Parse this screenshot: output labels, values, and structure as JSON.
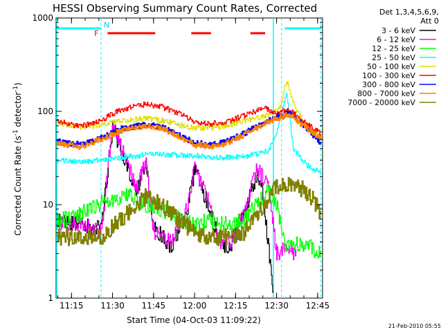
{
  "chart_data": {
    "type": "line",
    "title": "HESSI Observing Summary Count Rates, Corrected",
    "xlabel": "Start Time (04-Oct-03 11:09:22)",
    "ylabel_main": "Corrected Count Rate (s",
    "ylabel_sup1": "-1",
    "ylabel_mid": " detector",
    "ylabel_sup2": "-1",
    "ylabel_end": ")",
    "y_scale": "log",
    "ylim": [
      1,
      1000
    ],
    "xlim": [
      11.156,
      12.78
    ],
    "y_ticks": [
      {
        "value": 1,
        "label": "1"
      },
      {
        "value": 10,
        "label": "10"
      },
      {
        "value": 100,
        "label": "100"
      },
      {
        "value": 1000,
        "label": "1000"
      }
    ],
    "x_ticks": [
      {
        "value": 11.25,
        "label": "11:15"
      },
      {
        "value": 11.5,
        "label": "11:30"
      },
      {
        "value": 11.75,
        "label": "11:45"
      },
      {
        "value": 12.0,
        "label": "12:00"
      },
      {
        "value": 12.25,
        "label": "12:15"
      },
      {
        "value": 12.5,
        "label": "12:30"
      },
      {
        "value": 12.75,
        "label": "12:45"
      }
    ],
    "legend_header_line1": "Det 1,3,4,5,6,9,",
    "legend_header_line2": "Att 0",
    "legend_placement": "right",
    "markers": {
      "F_label": "F",
      "N_label": "N",
      "dashed_lines": [
        11.43,
        12.53,
        12.77
      ],
      "solid_lines": [
        11.16,
        12.48
      ]
    },
    "bars": {
      "cyan": [
        [
          11.16,
          11.43
        ],
        [
          12.55,
          12.77
        ]
      ],
      "red": [
        [
          11.47,
          11.76
        ],
        [
          11.98,
          12.1
        ],
        [
          12.34,
          12.43
        ]
      ]
    },
    "series": [
      {
        "name": "3 - 6 keV",
        "color": "#000000",
        "points": [
          [
            11.16,
            6.5
          ],
          [
            11.3,
            6.0
          ],
          [
            11.43,
            5.5
          ],
          [
            11.5,
            70
          ],
          [
            11.6,
            22
          ],
          [
            11.65,
            14
          ],
          [
            11.7,
            28
          ],
          [
            11.75,
            6
          ],
          [
            11.85,
            3.5
          ],
          [
            11.95,
            8
          ],
          [
            12.0,
            24
          ],
          [
            12.08,
            10
          ],
          [
            12.15,
            4
          ],
          [
            12.22,
            3.5
          ],
          [
            12.3,
            8
          ],
          [
            12.38,
            22
          ],
          [
            12.42,
            12
          ],
          [
            12.48,
            1
          ]
        ]
      },
      {
        "name": "6 - 12 keV",
        "color": "#ff00ff",
        "points": [
          [
            11.16,
            6.5
          ],
          [
            11.3,
            6.5
          ],
          [
            11.43,
            5
          ],
          [
            11.5,
            75
          ],
          [
            11.6,
            25
          ],
          [
            11.65,
            15
          ],
          [
            11.7,
            30
          ],
          [
            11.75,
            5
          ],
          [
            11.85,
            4
          ],
          [
            11.95,
            9
          ],
          [
            12.0,
            25
          ],
          [
            12.08,
            11
          ],
          [
            12.15,
            4
          ],
          [
            12.22,
            4
          ],
          [
            12.3,
            9
          ],
          [
            12.38,
            25
          ],
          [
            12.45,
            15
          ],
          [
            12.5,
            3
          ],
          [
            12.55,
            3.5
          ],
          [
            12.62,
            3
          ]
        ]
      },
      {
        "name": "12 - 25 keV",
        "color": "#00ff00",
        "points": [
          [
            11.16,
            6.5
          ],
          [
            11.3,
            8
          ],
          [
            11.4,
            10
          ],
          [
            11.5,
            11
          ],
          [
            11.6,
            13
          ],
          [
            11.7,
            10
          ],
          [
            11.8,
            9
          ],
          [
            11.9,
            7
          ],
          [
            12.0,
            6
          ],
          [
            12.1,
            7
          ],
          [
            12.2,
            6
          ],
          [
            12.3,
            7
          ],
          [
            12.4,
            11
          ],
          [
            12.45,
            14
          ],
          [
            12.5,
            10
          ],
          [
            12.55,
            3.5
          ],
          [
            12.65,
            4
          ],
          [
            12.77,
            3
          ]
        ]
      },
      {
        "name": "25 - 50 keV",
        "color": "#00ffff",
        "points": [
          [
            11.16,
            30
          ],
          [
            11.3,
            29
          ],
          [
            11.43,
            30
          ],
          [
            11.6,
            33
          ],
          [
            11.75,
            35
          ],
          [
            11.9,
            34
          ],
          [
            12.05,
            33
          ],
          [
            12.2,
            32
          ],
          [
            12.35,
            34
          ],
          [
            12.45,
            38
          ],
          [
            12.5,
            60
          ],
          [
            12.56,
            160
          ],
          [
            12.6,
            40
          ],
          [
            12.7,
            25
          ],
          [
            12.77,
            22
          ]
        ]
      },
      {
        "name": "50 - 100 keV",
        "color": "#e0e000",
        "points": [
          [
            11.16,
            75
          ],
          [
            11.3,
            68
          ],
          [
            11.43,
            72
          ],
          [
            11.55,
            80
          ],
          [
            11.7,
            84
          ],
          [
            11.8,
            80
          ],
          [
            11.9,
            72
          ],
          [
            12.0,
            66
          ],
          [
            12.15,
            68
          ],
          [
            12.3,
            78
          ],
          [
            12.45,
            92
          ],
          [
            12.52,
            110
          ],
          [
            12.56,
            220
          ],
          [
            12.62,
            100
          ],
          [
            12.7,
            65
          ],
          [
            12.77,
            55
          ]
        ]
      },
      {
        "name": "100 - 300 keV",
        "color": "#ff0000",
        "points": [
          [
            11.16,
            80
          ],
          [
            11.3,
            68
          ],
          [
            11.43,
            80
          ],
          [
            11.55,
            105
          ],
          [
            11.7,
            120
          ],
          [
            11.8,
            112
          ],
          [
            11.9,
            95
          ],
          [
            12.0,
            78
          ],
          [
            12.1,
            74
          ],
          [
            12.2,
            78
          ],
          [
            12.3,
            90
          ],
          [
            12.42,
            110
          ],
          [
            12.5,
            95
          ],
          [
            12.58,
            105
          ],
          [
            12.65,
            80
          ],
          [
            12.77,
            58
          ]
        ]
      },
      {
        "name": "300 - 800 keV",
        "color": "#0000ff",
        "points": [
          [
            11.16,
            48
          ],
          [
            11.3,
            44
          ],
          [
            11.43,
            52
          ],
          [
            11.55,
            65
          ],
          [
            11.7,
            72
          ],
          [
            11.8,
            68
          ],
          [
            11.9,
            56
          ],
          [
            12.0,
            46
          ],
          [
            12.1,
            44
          ],
          [
            12.2,
            48
          ],
          [
            12.3,
            58
          ],
          [
            12.4,
            72
          ],
          [
            12.5,
            88
          ],
          [
            12.58,
            95
          ],
          [
            12.65,
            75
          ],
          [
            12.77,
            46
          ]
        ]
      },
      {
        "name": "800 - 7000 keV",
        "color": "#ff8000",
        "points": [
          [
            11.16,
            46
          ],
          [
            11.3,
            42
          ],
          [
            11.43,
            50
          ],
          [
            11.55,
            62
          ],
          [
            11.7,
            70
          ],
          [
            11.8,
            66
          ],
          [
            11.9,
            54
          ],
          [
            12.0,
            44
          ],
          [
            12.1,
            42
          ],
          [
            12.2,
            46
          ],
          [
            12.3,
            56
          ],
          [
            12.4,
            70
          ],
          [
            12.5,
            85
          ],
          [
            12.58,
            92
          ],
          [
            12.65,
            72
          ],
          [
            12.77,
            52
          ]
        ]
      },
      {
        "name": "7000 - 20000 keV",
        "color": "#808000",
        "points": [
          [
            11.16,
            4.5
          ],
          [
            11.3,
            4.5
          ],
          [
            11.43,
            4.5
          ],
          [
            11.55,
            7
          ],
          [
            11.7,
            12
          ],
          [
            11.8,
            10
          ],
          [
            11.9,
            7
          ],
          [
            12.0,
            5
          ],
          [
            12.1,
            4.5
          ],
          [
            12.2,
            4.5
          ],
          [
            12.3,
            5
          ],
          [
            12.4,
            9
          ],
          [
            12.5,
            16
          ],
          [
            12.6,
            17
          ],
          [
            12.7,
            13
          ],
          [
            12.77,
            8
          ]
        ]
      }
    ]
  },
  "footer": {
    "timestamp": "21-Feb-2010 05:55"
  }
}
